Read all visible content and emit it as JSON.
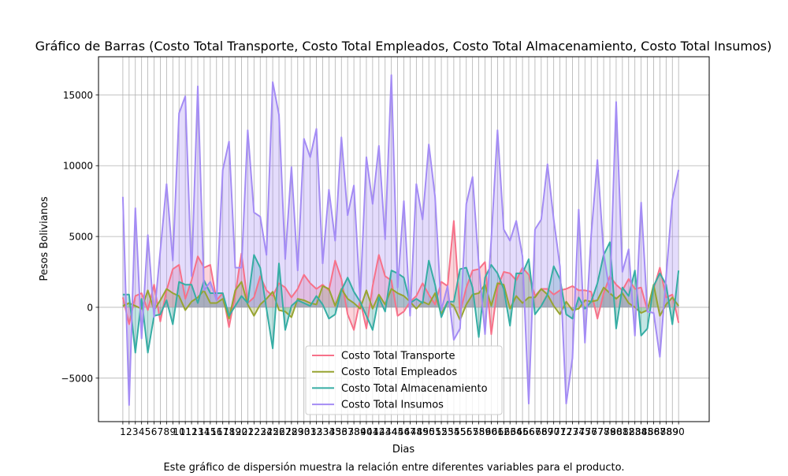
{
  "chart_data": {
    "type": "area",
    "title": "Gráfico de Barras (Costo Total Transporte, Costo Total Empleados, Costo Total Almacenamiento, Costo Total Insumos)",
    "xlabel": "Dias",
    "ylabel": "Pesos Bolivianos",
    "caption": "Este gráfico de dispersión muestra la relación entre diferentes variables para el producto.",
    "x": [
      1,
      2,
      3,
      4,
      5,
      6,
      7,
      8,
      9,
      10,
      11,
      12,
      13,
      14,
      15,
      16,
      17,
      18,
      19,
      20,
      21,
      22,
      23,
      24,
      25,
      26,
      27,
      28,
      29,
      30,
      31,
      32,
      33,
      34,
      35,
      36,
      37,
      38,
      39,
      40,
      41,
      42,
      43,
      44,
      45,
      46,
      47,
      48,
      49,
      50,
      51,
      52,
      53,
      54,
      55,
      56,
      57,
      58,
      59,
      60,
      61,
      62,
      63,
      64,
      65,
      66,
      67,
      68,
      69,
      70,
      71,
      72,
      73,
      74,
      75,
      76,
      77,
      78,
      79,
      80,
      81,
      82,
      83,
      84,
      85,
      86,
      87,
      88,
      89,
      90
    ],
    "xticklabels": [
      "1",
      "2",
      "3",
      "4",
      "5",
      "6",
      "7",
      "8",
      "9",
      "10",
      "11",
      "12",
      "13",
      "14",
      "15",
      "16",
      "17",
      "18",
      "19",
      "20",
      "21",
      "22",
      "23",
      "24",
      "25",
      "26",
      "27",
      "28",
      "29",
      "30",
      "31",
      "32",
      "33",
      "34",
      "35",
      "36",
      "37",
      "38",
      "39",
      "40",
      "41",
      "42",
      "43",
      "44",
      "45",
      "46",
      "47",
      "48",
      "49",
      "50",
      "51",
      "52",
      "53",
      "54",
      "55",
      "56",
      "57",
      "58",
      "59",
      "60",
      "61",
      "62",
      "63",
      "64",
      "65",
      "66",
      "67",
      "68",
      "69",
      "70",
      "71",
      "72",
      "73",
      "74",
      "75",
      "76",
      "77",
      "78",
      "79",
      "80",
      "81",
      "82",
      "83",
      "84",
      "85",
      "86",
      "87",
      "88",
      "89",
      "90"
    ],
    "yticks": [
      -5000,
      0,
      5000,
      10000,
      15000
    ],
    "yticklabels": [
      "−5000",
      "0",
      "5000",
      "10000",
      "15000"
    ],
    "xlim": [
      -2.9,
      94.9
    ],
    "ylim": [
      -8070,
      17690
    ],
    "grid": true,
    "legend_position": "lower-center",
    "series": [
      {
        "name": "Costo Total Transporte",
        "color": "#f77189",
        "values": [
          700,
          -1200,
          800,
          1000,
          -200,
          1600,
          -1000,
          1200,
          2700,
          3000,
          600,
          1900,
          3600,
          2800,
          3000,
          500,
          1000,
          -1400,
          900,
          3800,
          300,
          700,
          2200,
          1200,
          800,
          1700,
          1400,
          700,
          1300,
          2300,
          1700,
          1300,
          1600,
          1200,
          3300,
          2000,
          -500,
          -1600,
          500,
          -1500,
          1500,
          3700,
          2200,
          1900,
          -600,
          -300,
          400,
          800,
          1700,
          900,
          200,
          1800,
          1500,
          6100,
          -400,
          1400,
          2600,
          2700,
          3200,
          -1900,
          1400,
          2500,
          2400,
          1900,
          2800,
          2300,
          800,
          1300,
          1300,
          900,
          1200,
          1300,
          1500,
          1200,
          1200,
          1100,
          -800,
          1000,
          2200,
          1600,
          1200,
          2000,
          1300,
          1400,
          -200,
          1300,
          2800,
          700,
          900,
          -1100
        ]
      },
      {
        "name": "Costo Total Empleados",
        "color": "#97a431",
        "values": [
          100,
          300,
          100,
          -100,
          1200,
          -200,
          500,
          1300,
          1000,
          800,
          -200,
          400,
          700,
          1200,
          300,
          300,
          600,
          -800,
          1200,
          1800,
          200,
          -600,
          200,
          600,
          1100,
          -200,
          -300,
          -700,
          600,
          500,
          300,
          200,
          1500,
          1300,
          100,
          1300,
          600,
          300,
          -100,
          1200,
          -100,
          900,
          200,
          1300,
          1000,
          800,
          400,
          -100,
          400,
          200,
          1000,
          -500,
          400,
          100,
          -900,
          200,
          900,
          1000,
          1600,
          100,
          1700,
          1600,
          -100,
          800,
          300,
          700,
          700,
          1300,
          900,
          100,
          -500,
          400,
          -200,
          -100,
          500,
          400,
          500,
          1400,
          1000,
          600,
          1000,
          300,
          0,
          -400,
          -200,
          1600,
          -600,
          200,
          700,
          100
        ]
      },
      {
        "name": "Costo Total Almacenamiento",
        "color": "#36ada4",
        "values": [
          900,
          900,
          -3200,
          600,
          -3200,
          -600,
          -500,
          500,
          -1200,
          1800,
          1600,
          1600,
          300,
          1900,
          1000,
          1000,
          1000,
          -600,
          100,
          800,
          300,
          3700,
          2800,
          -100,
          -2900,
          3100,
          -1600,
          100,
          500,
          300,
          100,
          800,
          200,
          -800,
          -500,
          1200,
          2100,
          1100,
          400,
          -600,
          -1600,
          700,
          -300,
          2600,
          2400,
          2100,
          300,
          600,
          300,
          3300,
          1600,
          -700,
          400,
          400,
          2700,
          2800,
          1400,
          -2100,
          2100,
          3000,
          2400,
          1300,
          -1300,
          2400,
          2400,
          3400,
          -500,
          100,
          900,
          2900,
          2000,
          -500,
          -800,
          700,
          -100,
          400,
          1700,
          3700,
          4600,
          -1500,
          1400,
          800,
          2600,
          -2000,
          -1500,
          1500,
          2400,
          1600,
          -1200,
          2600
        ]
      },
      {
        "name": "Costo Total Insumos",
        "color": "#a48cf4",
        "values": [
          7800,
          -6900,
          7000,
          -2200,
          5100,
          -700,
          4000,
          8700,
          3300,
          13700,
          14900,
          2200,
          15600,
          1200,
          1800,
          500,
          9700,
          11700,
          2800,
          2800,
          12500,
          6700,
          6400,
          3700,
          15900,
          13600,
          3400,
          9900,
          2600,
          11900,
          10600,
          12600,
          3100,
          8300,
          4700,
          12000,
          6500,
          8600,
          600,
          10600,
          7300,
          11400,
          4800,
          16400,
          1400,
          7500,
          -600,
          8700,
          6200,
          11500,
          7800,
          -200,
          1500,
          -2300,
          -1500,
          7300,
          9200,
          3000,
          -1900,
          4800,
          12500,
          5500,
          4700,
          6100,
          3600,
          -6800,
          5500,
          6200,
          10100,
          6200,
          2900,
          -6800,
          -3600,
          6900,
          -2500,
          5100,
          10400,
          3800,
          1000,
          14500,
          2500,
          4100,
          -2000,
          7400,
          -300,
          -400,
          -3500,
          2200,
          7600,
          9700
        ]
      }
    ]
  }
}
